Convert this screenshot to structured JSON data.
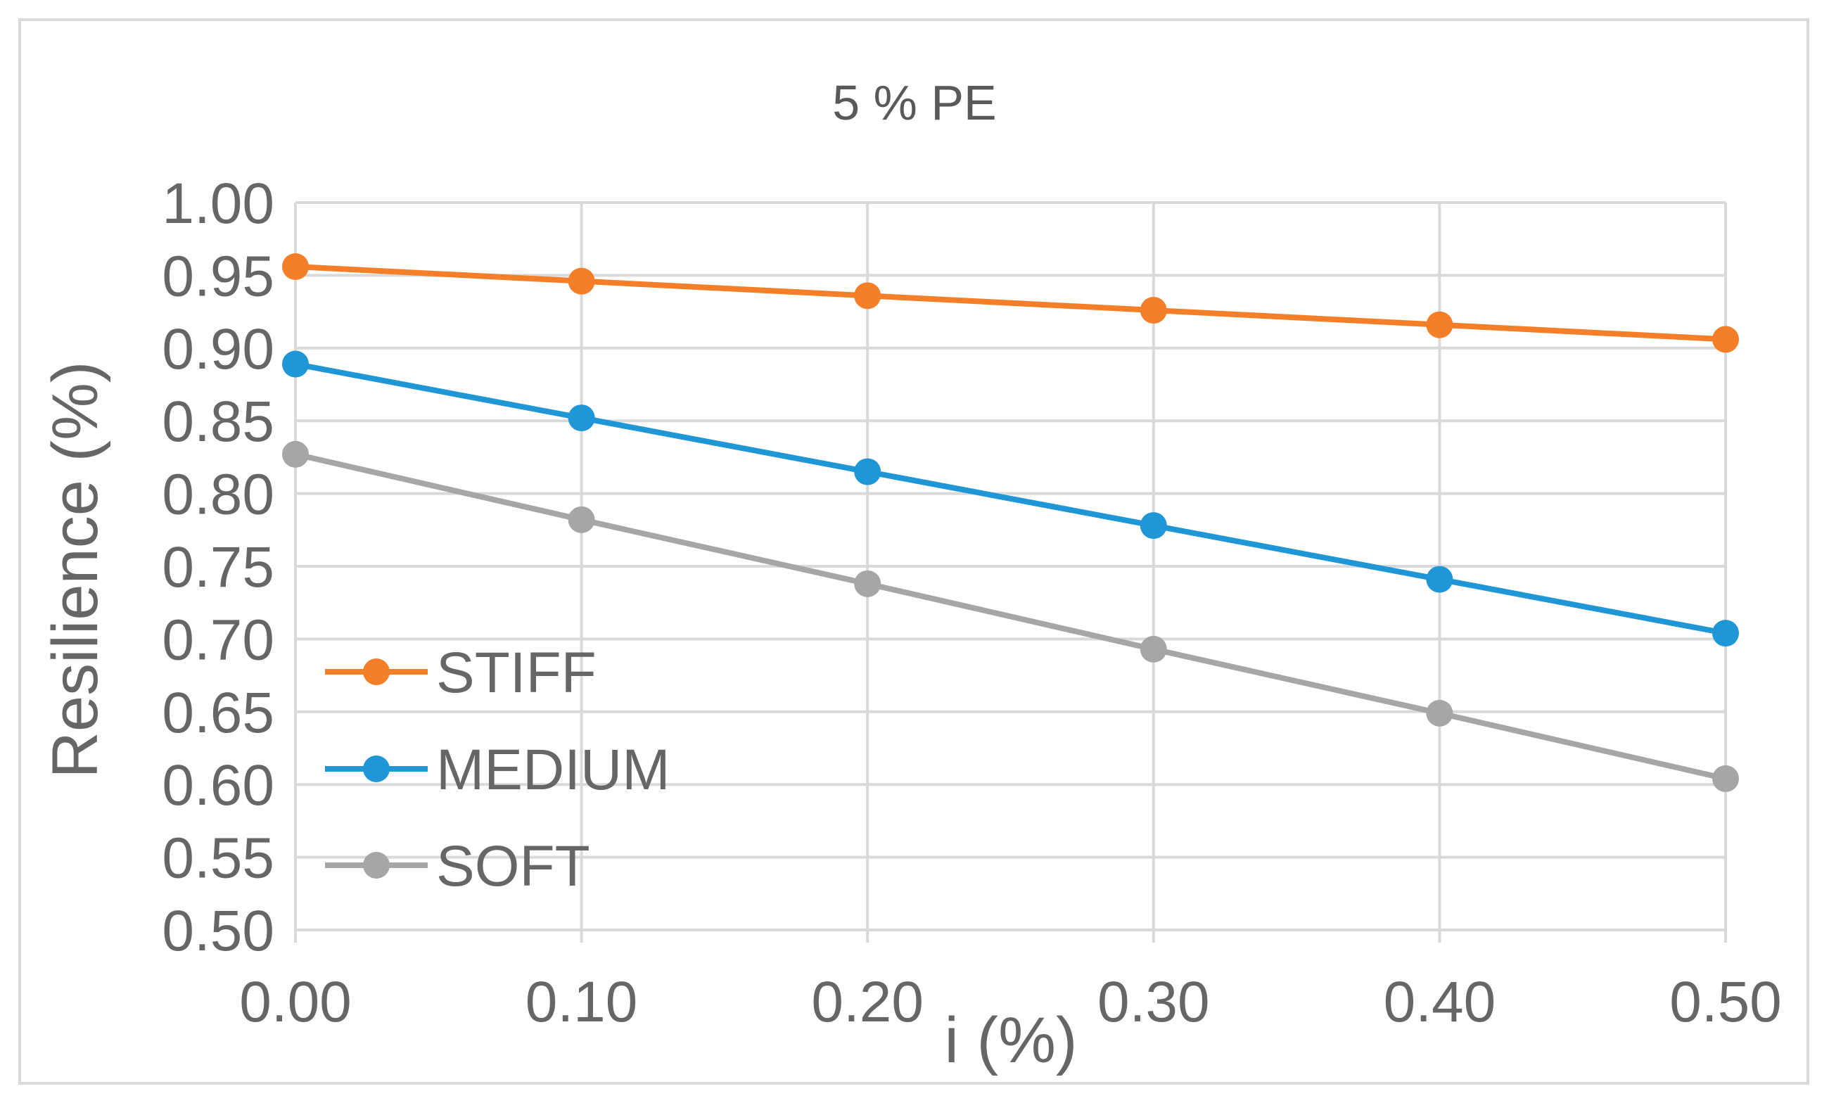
{
  "chart_data": {
    "type": "line",
    "title": "5 % PE",
    "xlabel": "i (%)",
    "ylabel": "Resilience (%)",
    "x": [
      0.0,
      0.1,
      0.2,
      0.3,
      0.4,
      0.5
    ],
    "x_tick_labels": [
      "0.00",
      "0.10",
      "0.20",
      "0.30",
      "0.40",
      "0.50"
    ],
    "xlim": [
      0.0,
      0.5
    ],
    "ylim": [
      0.5,
      1.0
    ],
    "y_ticks": [
      0.5,
      0.55,
      0.6,
      0.65,
      0.7,
      0.75,
      0.8,
      0.85,
      0.9,
      0.95,
      1.0
    ],
    "y_tick_labels": [
      "0.50",
      "0.55",
      "0.60",
      "0.65",
      "0.70",
      "0.75",
      "0.80",
      "0.85",
      "0.90",
      "0.95",
      "1.00"
    ],
    "grid": true,
    "legend_position": "bottom-left (inside)",
    "series": [
      {
        "name": "STIFF",
        "color": "#f57f28",
        "values": [
          0.956,
          0.946,
          0.936,
          0.926,
          0.916,
          0.906
        ]
      },
      {
        "name": "MEDIUM",
        "color": "#1f96d6",
        "values": [
          0.889,
          0.852,
          0.815,
          0.778,
          0.741,
          0.704
        ]
      },
      {
        "name": "SOFT",
        "color": "#a6a6a6",
        "values": [
          0.827,
          0.782,
          0.738,
          0.693,
          0.649,
          0.604
        ]
      }
    ]
  }
}
